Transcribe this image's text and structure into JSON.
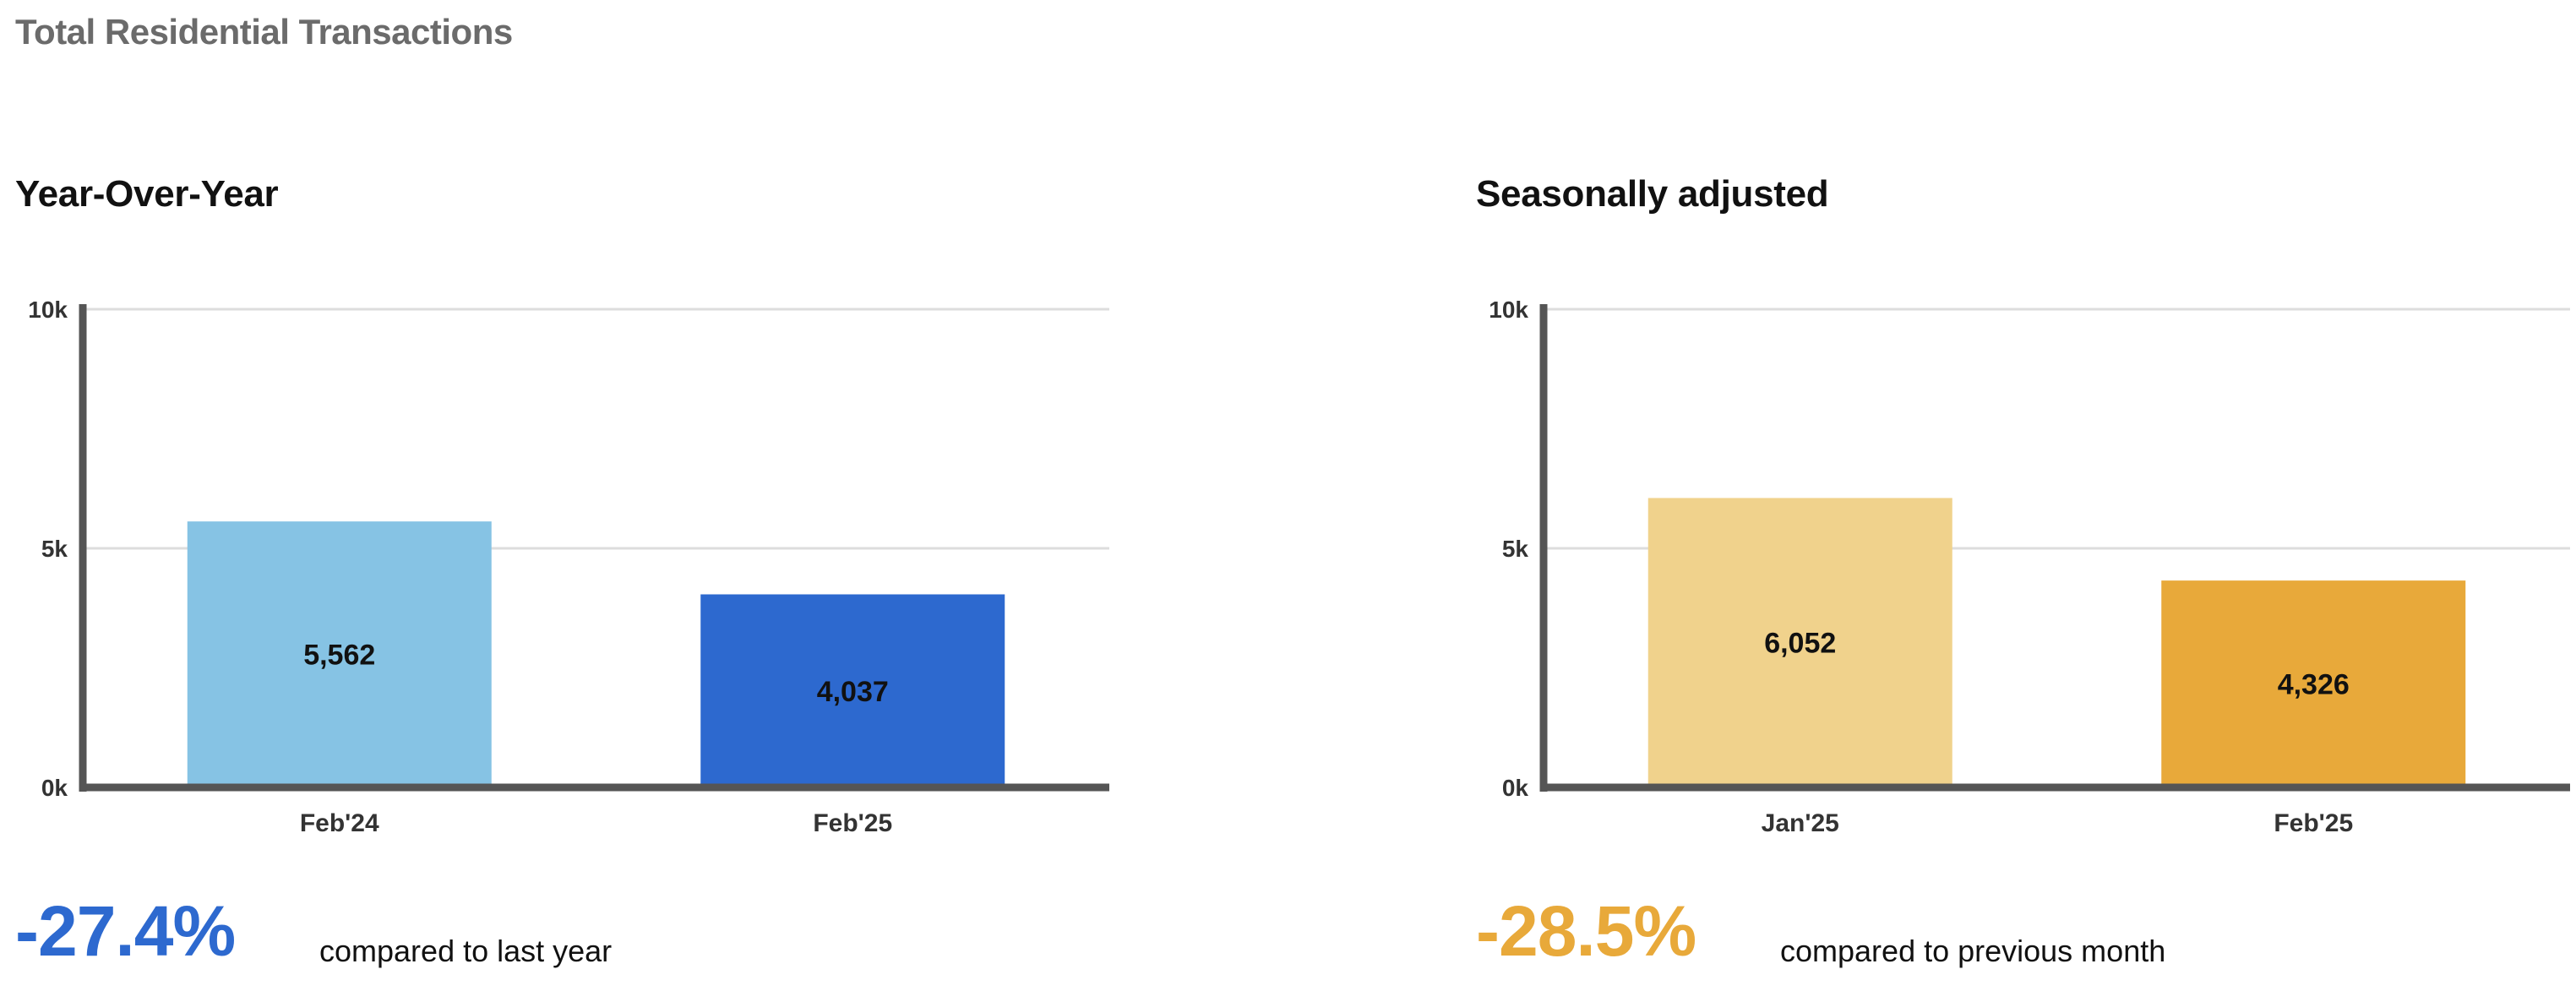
{
  "page_title": "Total Residential Transactions",
  "panels": [
    {
      "title": "Year-Over-Year",
      "change": "-27.4%",
      "change_color": "#2d69cf",
      "compare_text": "compared to last year"
    },
    {
      "title": "Seasonally adjusted",
      "change": "-28.5%",
      "change_color": "#e8a93a",
      "compare_text": "compared to previous month"
    }
  ],
  "chart_data": [
    {
      "type": "bar",
      "title": "Year-Over-Year",
      "categories": [
        "Feb'24",
        "Feb'25"
      ],
      "values": [
        5562,
        4037
      ],
      "value_labels": [
        "5,562",
        "4,037"
      ],
      "colors": [
        "#86c3e4",
        "#2d69cf"
      ],
      "ylim": [
        0,
        10000
      ],
      "yticks": [
        0,
        5000,
        10000
      ],
      "ytick_labels": [
        "0k",
        "5k",
        "10k"
      ],
      "xlabel": "",
      "ylabel": "",
      "grid": true
    },
    {
      "type": "bar",
      "title": "Seasonally adjusted",
      "categories": [
        "Jan'25",
        "Feb'25"
      ],
      "values": [
        6052,
        4326
      ],
      "value_labels": [
        "6,052",
        "4,326"
      ],
      "colors": [
        "#f0d28c",
        "#e8a93a"
      ],
      "ylim": [
        0,
        10000
      ],
      "yticks": [
        0,
        5000,
        10000
      ],
      "ytick_labels": [
        "0k",
        "5k",
        "10k"
      ],
      "xlabel": "",
      "ylabel": "",
      "grid": true
    }
  ]
}
